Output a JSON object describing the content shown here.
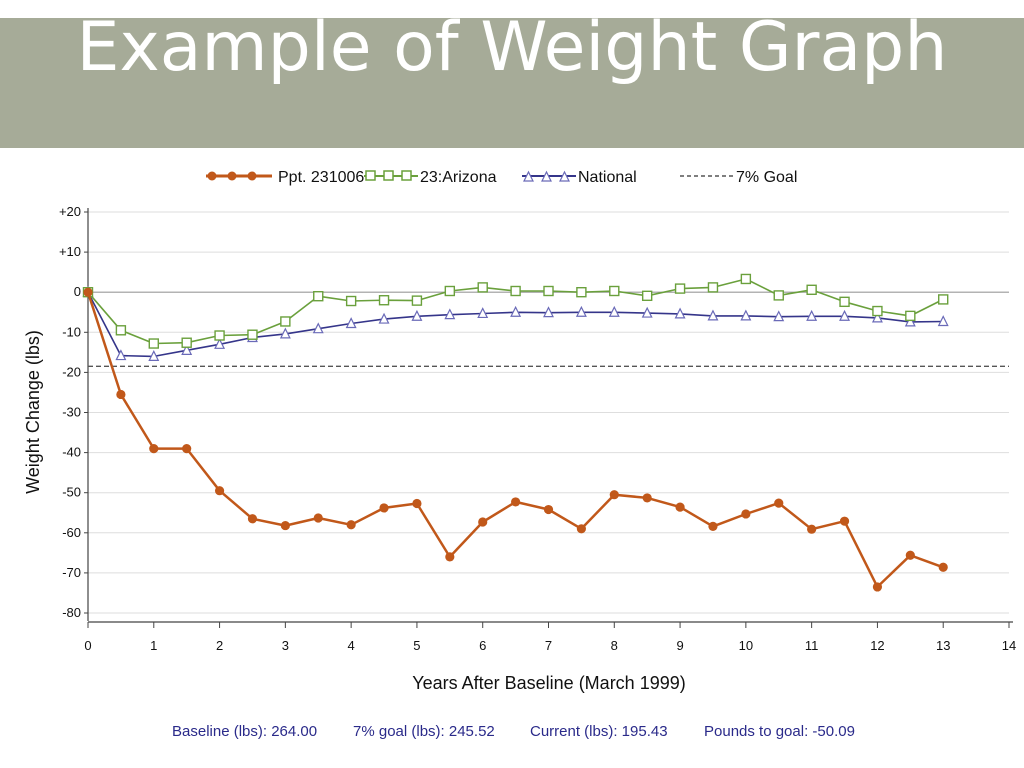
{
  "slide": {
    "title": "Example of Weight Graph"
  },
  "footer": {
    "baseline": "Baseline (lbs): 264.00",
    "goal": "7% goal (lbs): 245.52",
    "current": "Current (lbs): 195.43",
    "to_goal": "Pounds to goal: -50.09"
  },
  "colors": {
    "ppt": "#c1581a",
    "arizona": "#6aa03c",
    "national": "#35358a",
    "goal": "#555555",
    "band": "#a6ab98"
  },
  "chart_data": {
    "type": "line",
    "title": "",
    "xlabel": "Years After Baseline (March 1999)",
    "ylabel": "Weight Change (lbs)",
    "xlim": [
      0,
      14
    ],
    "ylim": [
      -80,
      20
    ],
    "x_ticks": [
      "0",
      "1",
      "2",
      "3",
      "4",
      "5",
      "6",
      "7",
      "8",
      "9",
      "10",
      "11",
      "12",
      "13",
      "14"
    ],
    "y_ticks": [
      "+20",
      "+10",
      "0",
      "-10",
      "-20",
      "-30",
      "-40",
      "-50",
      "-60",
      "-70",
      "-80"
    ],
    "x": [
      0,
      0.5,
      1,
      1.5,
      2,
      2.5,
      3,
      3.5,
      4,
      4.5,
      5,
      5.5,
      6,
      6.5,
      7,
      7.5,
      8,
      8.5,
      9,
      9.5,
      10,
      10.5,
      11,
      11.5,
      12,
      12.5,
      13
    ],
    "legend_position": "top",
    "series": [
      {
        "name": "Ppt. 231006",
        "marker": "circle",
        "values": [
          0,
          -25.5,
          -39,
          -39,
          -49.5,
          -56.5,
          -58.2,
          -56.3,
          -58,
          -53.8,
          -52.7,
          -66,
          -57.3,
          -52.3,
          -54.2,
          -59,
          -50.5,
          -51.3,
          -53.6,
          -58.4,
          -55.3,
          -52.6,
          -59.1,
          -57.1,
          -73.5,
          -65.6,
          -68.6
        ]
      },
      {
        "name": "23:Arizona",
        "marker": "square",
        "values": [
          0,
          -9.5,
          -12.8,
          -12.6,
          -10.8,
          -10.6,
          -7.3,
          -1,
          -2.2,
          -2,
          -2.1,
          0.3,
          1.2,
          0.3,
          0.3,
          0,
          0.3,
          -0.9,
          0.9,
          1.2,
          3.3,
          -0.8,
          0.6,
          -2.4,
          -4.7,
          -5.9,
          -1.8
        ]
      },
      {
        "name": "National",
        "marker": "triangle",
        "values": [
          0,
          -15.8,
          -16,
          -14.5,
          -13,
          -11.3,
          -10.4,
          -9.1,
          -7.8,
          -6.7,
          -6,
          -5.6,
          -5.3,
          -5,
          -5.1,
          -5,
          -5,
          -5.2,
          -5.4,
          -5.9,
          -5.9,
          -6.1,
          -6,
          -6,
          -6.4,
          -7.4,
          -7.3
        ]
      }
    ],
    "reference_lines": [
      {
        "name": "7% Goal",
        "y": -18.48,
        "style": "dashed"
      }
    ]
  }
}
